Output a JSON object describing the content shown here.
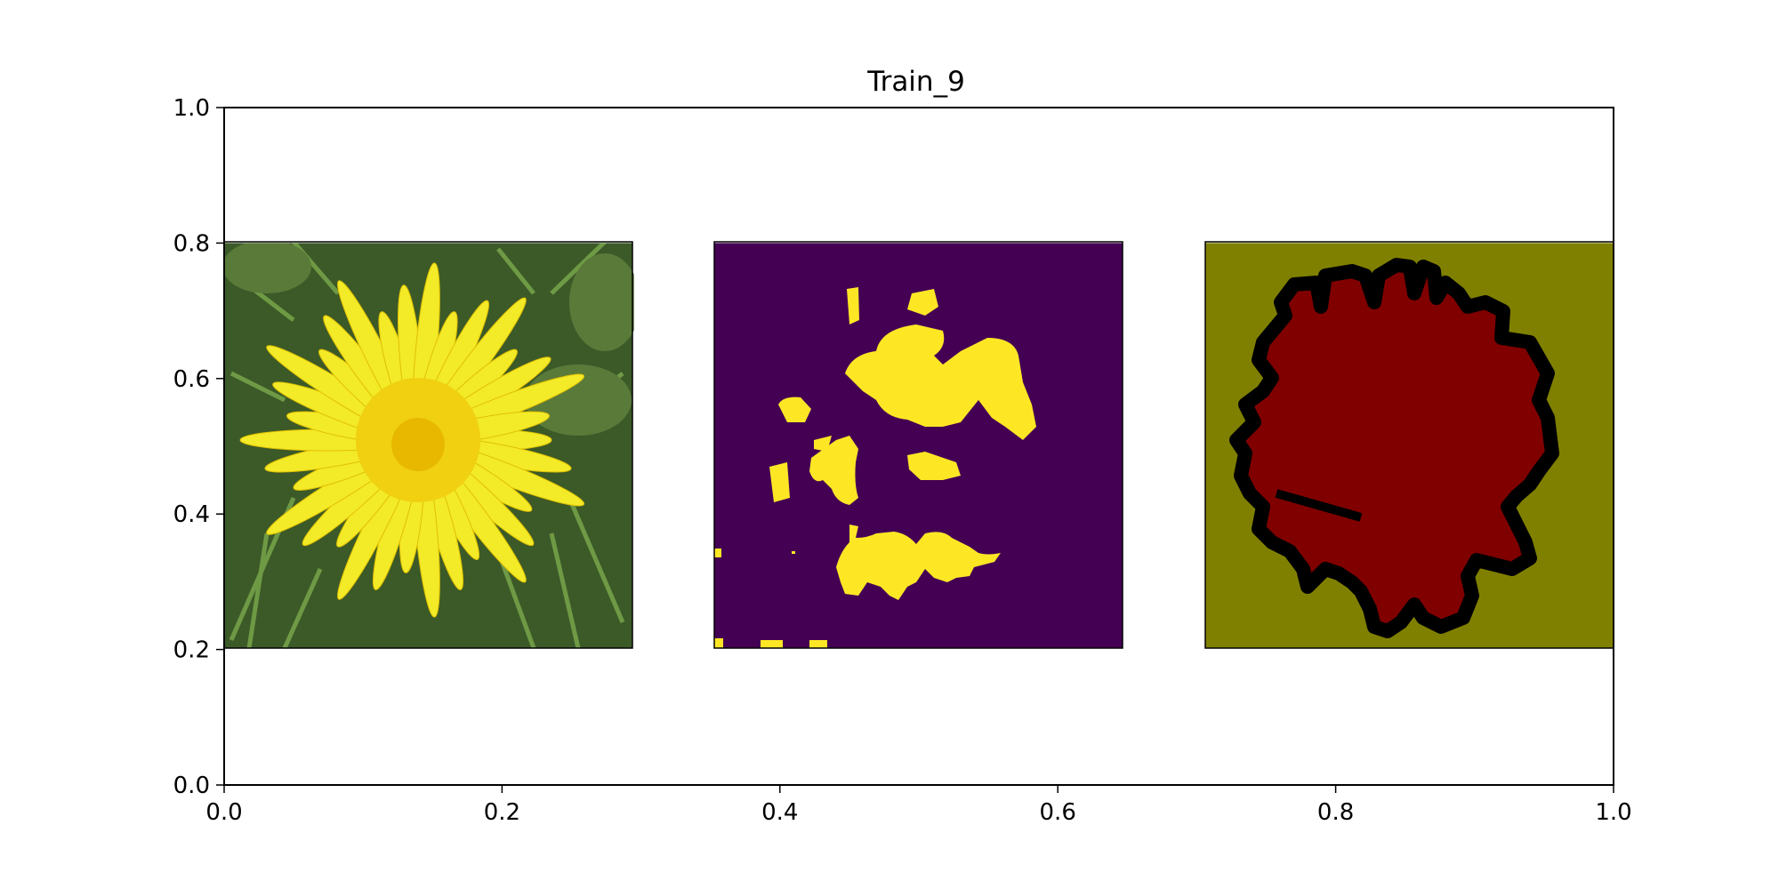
{
  "chart_data": {
    "type": "image-panels",
    "title": "Train_9",
    "xlabel": "",
    "ylabel": "",
    "xlim": [
      0.0,
      1.0
    ],
    "ylim": [
      0.0,
      1.0
    ],
    "grid": false,
    "x_ticks": [
      "0.0",
      "0.2",
      "0.4",
      "0.6",
      "0.8",
      "1.0"
    ],
    "y_ticks": [
      "0.0",
      "0.2",
      "0.4",
      "0.6",
      "0.8",
      "1.0"
    ],
    "x_tick_values": [
      0.0,
      0.2,
      0.4,
      0.6,
      0.8,
      1.0
    ],
    "y_tick_values": [
      0.0,
      0.2,
      0.4,
      0.6,
      0.8,
      1.0
    ],
    "panels": [
      {
        "name": "photo-panel",
        "extent": [
          0.0,
          0.295,
          0.2,
          0.8
        ],
        "content": "dandelion-photo"
      },
      {
        "name": "mask-panel",
        "extent": [
          0.353,
          0.648,
          0.2,
          0.8
        ],
        "content": "binary-mask",
        "colors": {
          "background": "#440154",
          "foreground": "#fde725"
        }
      },
      {
        "name": "label-panel",
        "extent": [
          0.706,
          1.0,
          0.2,
          0.8
        ],
        "content": "label-map",
        "colors": {
          "background": "#808000",
          "object": "#800000",
          "boundary": "#000000"
        }
      }
    ]
  }
}
